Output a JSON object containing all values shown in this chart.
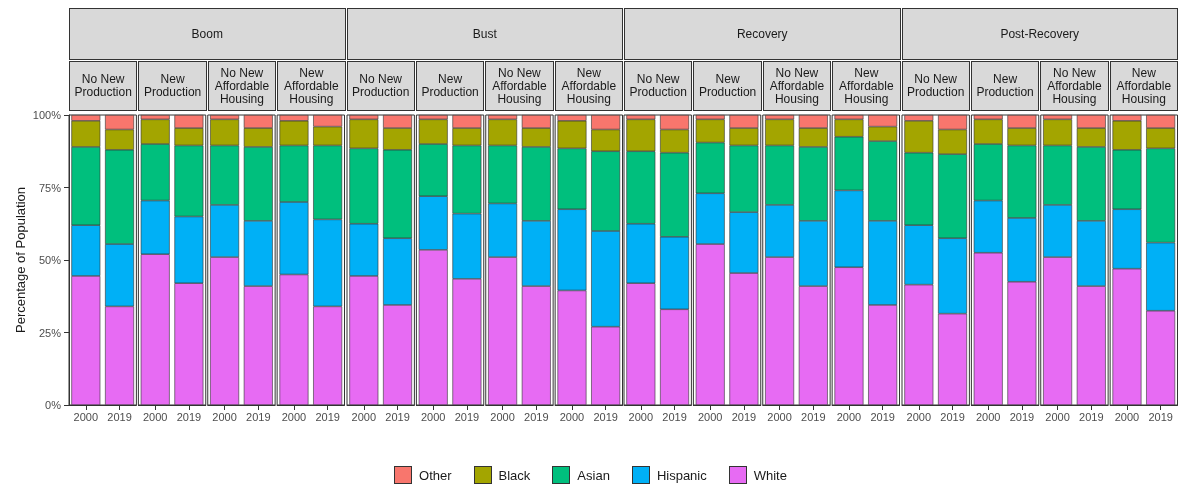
{
  "chart_data": [
    {
      "type": "bar",
      "stacked": true,
      "title": "Boom",
      "annotations": [
        "No New Production",
        "New Production",
        "No New Affordable Housing",
        "New Affordable Housing"
      ],
      "ylabel": "Percentage of Population",
      "legend": "bottom",
      "categories": [
        "2000",
        "2019",
        "2000",
        "2019",
        "2000",
        "2019",
        "2000",
        "2019"
      ],
      "ylim": [
        0,
        100
      ],
      "yticks": [
        {
          "value": 0,
          "label": "0%"
        },
        {
          "value": 25,
          "label": "25%"
        },
        {
          "value": 50,
          "label": "50%"
        },
        {
          "value": 75,
          "label": "75%"
        },
        {
          "value": 100,
          "label": "100%"
        }
      ],
      "series": [
        {
          "name": "White",
          "color": "#e76bf3",
          "values": [
            44.5,
            34,
            52,
            42,
            51,
            41,
            45,
            34
          ]
        },
        {
          "name": "Hispanic",
          "color": "#00b0f6",
          "values": [
            17.5,
            21.5,
            18.5,
            23,
            18,
            22.5,
            25,
            30
          ]
        },
        {
          "name": "Asian",
          "color": "#00bf7d",
          "values": [
            27,
            32.5,
            19.5,
            24.5,
            20.5,
            25.5,
            19.5,
            25.5
          ]
        },
        {
          "name": "Black",
          "color": "#a3a500",
          "values": [
            9,
            7,
            8.5,
            6,
            9,
            6.5,
            8.5,
            6.5
          ]
        },
        {
          "name": "Other",
          "color": "#f8766d",
          "values": [
            2,
            5,
            1.5,
            4.5,
            1.5,
            4.5,
            2,
            4
          ]
        }
      ]
    },
    {
      "type": "bar",
      "stacked": true,
      "title": "Bust",
      "annotations": [
        "No New Production",
        "New Production",
        "No New Affordable Housing",
        "New Affordable Housing"
      ],
      "tick_labels": "x",
      "categories": [
        "2000",
        "2019",
        "2000",
        "2019",
        "2000",
        "2019",
        "2000",
        "2019"
      ],
      "ylim": [
        0,
        100
      ],
      "series": [
        {
          "name": "White",
          "color": "#e76bf3",
          "values": [
            44.5,
            34.5,
            53.5,
            43.5,
            51,
            41,
            39.5,
            27
          ]
        },
        {
          "name": "Hispanic",
          "color": "#00b0f6",
          "values": [
            18,
            23,
            18.5,
            22.5,
            18.5,
            22.5,
            28,
            33
          ]
        },
        {
          "name": "Asian",
          "color": "#00bf7d",
          "values": [
            26,
            30.5,
            18,
            23.5,
            20,
            25.5,
            21,
            27.5
          ]
        },
        {
          "name": "Black",
          "color": "#a3a500",
          "values": [
            10,
            7.5,
            8.5,
            6,
            9,
            6.5,
            9.5,
            7.5
          ]
        },
        {
          "name": "Other",
          "color": "#f8766d",
          "values": [
            1.5,
            4.5,
            1.5,
            4.5,
            1.5,
            4.5,
            2,
            5
          ]
        }
      ]
    },
    {
      "type": "bar",
      "stacked": true,
      "title": "Recovery",
      "annotations": [
        "No New Production",
        "New Production",
        "No New Affordable Housing",
        "New Affordable Housing"
      ],
      "tick_labels": "x",
      "categories": [
        "2000",
        "2019",
        "2000",
        "2019",
        "2000",
        "2019",
        "2000",
        "2019"
      ],
      "ylim": [
        0,
        100
      ],
      "series": [
        {
          "name": "White",
          "color": "#e76bf3",
          "values": [
            42,
            33,
            55.5,
            45.5,
            51,
            41,
            47.5,
            34.5
          ]
        },
        {
          "name": "Hispanic",
          "color": "#00b0f6",
          "values": [
            20.5,
            25,
            17.5,
            21,
            18,
            22.5,
            26.5,
            29
          ]
        },
        {
          "name": "Asian",
          "color": "#00bf7d",
          "values": [
            25,
            29,
            17.5,
            23,
            20.5,
            25.5,
            18.5,
            27.5
          ]
        },
        {
          "name": "Black",
          "color": "#a3a500",
          "values": [
            11,
            8,
            8,
            6,
            9,
            6.5,
            6,
            5
          ]
        },
        {
          "name": "Other",
          "color": "#f8766d",
          "values": [
            1.5,
            5,
            1.5,
            4.5,
            1.5,
            4.5,
            1.5,
            4
          ]
        }
      ]
    },
    {
      "type": "bar",
      "stacked": true,
      "title": "Post-Recovery",
      "annotations": [
        "No New Production",
        "New Production",
        "No New Affordable Housing",
        "New Affordable Housing"
      ],
      "tick_labels": "x",
      "categories": [
        "2000",
        "2019",
        "2000",
        "2019",
        "2000",
        "2019",
        "2000",
        "2019"
      ],
      "ylim": [
        0,
        100
      ],
      "series": [
        {
          "name": "White",
          "color": "#e76bf3",
          "values": [
            41.5,
            31.5,
            52.5,
            42.5,
            51,
            41,
            47,
            32.5
          ]
        },
        {
          "name": "Hispanic",
          "color": "#00b0f6",
          "values": [
            20.5,
            26,
            18,
            22,
            18,
            22.5,
            20.5,
            23.5
          ]
        },
        {
          "name": "Asian",
          "color": "#00bf7d",
          "values": [
            25,
            29,
            19.5,
            25,
            20.5,
            25.5,
            20.5,
            32.5
          ]
        },
        {
          "name": "Black",
          "color": "#a3a500",
          "values": [
            11,
            8.5,
            8.5,
            6,
            9,
            6.5,
            10,
            7
          ]
        },
        {
          "name": "Other",
          "color": "#f8766d",
          "values": [
            2,
            5,
            1.5,
            4.5,
            1.5,
            4.5,
            2,
            4.5
          ]
        }
      ]
    }
  ]
}
